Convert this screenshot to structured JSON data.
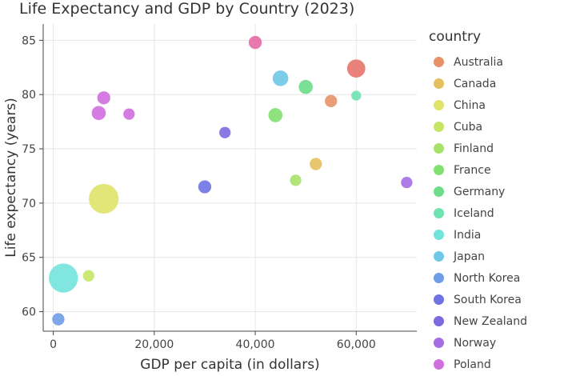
{
  "chart_data": {
    "type": "scatter",
    "title": "Life Expectancy and GDP by Country (2023)",
    "xlabel": "GDP per capita (in dollars)",
    "ylabel": "Life expectancy (years)",
    "xlim": [
      -2000,
      72000
    ],
    "ylim": [
      58.2,
      86.5
    ],
    "xticks": [
      0,
      20000,
      40000,
      60000
    ],
    "xtick_labels": [
      "0",
      "20,000",
      "40,000",
      "60,000"
    ],
    "yticks": [
      60,
      65,
      70,
      75,
      80,
      85
    ],
    "ytick_labels": [
      "60",
      "65",
      "70",
      "75",
      "80",
      "85"
    ],
    "grid": true,
    "legend_title": "country",
    "legend_position": "right",
    "size_encodes": "population",
    "series": [
      {
        "name": "Australia",
        "color": "#e8926a",
        "points": [
          {
            "x": 55000,
            "y": 79.4,
            "size": 0.1
          }
        ]
      },
      {
        "name": "Canada",
        "color": "#e4c060",
        "points": [
          {
            "x": 52000,
            "y": 73.6,
            "size": 0.1
          }
        ]
      },
      {
        "name": "China",
        "color": "#dfe36a",
        "points": [
          {
            "x": 10000,
            "y": 70.4,
            "size": 1.0
          }
        ]
      },
      {
        "name": "Cuba",
        "color": "#c5e567",
        "points": [
          {
            "x": 7000,
            "y": 63.3,
            "size": 0.08
          }
        ]
      },
      {
        "name": "Finland",
        "color": "#a7e36a",
        "points": [
          {
            "x": 48000,
            "y": 72.1,
            "size": 0.08
          }
        ]
      },
      {
        "name": "France",
        "color": "#82e070",
        "points": [
          {
            "x": 44000,
            "y": 78.1,
            "size": 0.15
          }
        ]
      },
      {
        "name": "Germany",
        "color": "#6ddd8b",
        "points": [
          {
            "x": 50000,
            "y": 80.7,
            "size": 0.15
          }
        ]
      },
      {
        "name": "Iceland",
        "color": "#6ee3b0",
        "points": [
          {
            "x": 60000,
            "y": 79.9,
            "size": 0.05
          }
        ]
      },
      {
        "name": "India",
        "color": "#72e3db",
        "points": [
          {
            "x": 2000,
            "y": 63.1,
            "size": 0.95
          }
        ]
      },
      {
        "name": "Japan",
        "color": "#6ec8e6",
        "points": [
          {
            "x": 45000,
            "y": 81.5,
            "size": 0.2
          }
        ]
      },
      {
        "name": "North Korea",
        "color": "#6f9de6",
        "points": [
          {
            "x": 1000,
            "y": 59.3,
            "size": 0.1
          }
        ]
      },
      {
        "name": "South Korea",
        "color": "#6f73e3",
        "points": [
          {
            "x": 30000,
            "y": 71.5,
            "size": 0.12
          }
        ]
      },
      {
        "name": "New Zealand",
        "color": "#7c6be0",
        "points": [
          {
            "x": 34000,
            "y": 76.5,
            "size": 0.08
          }
        ]
      },
      {
        "name": "Norway",
        "color": "#a46ee2",
        "points": [
          {
            "x": 70000,
            "y": 71.9,
            "size": 0.08
          }
        ]
      },
      {
        "name": "Poland",
        "color": "#d06ee0",
        "points": [
          {
            "x": 10000,
            "y": 79.7,
            "size": 0.12
          },
          {
            "x": 9000,
            "y": 78.3,
            "size": 0.15
          },
          {
            "x": 15000,
            "y": 78.2,
            "size": 0.08
          }
        ]
      },
      {
        "name": "",
        "color": "#e46aa3",
        "points": [
          {
            "x": 40000,
            "y": 84.8,
            "size": 0.12
          }
        ]
      },
      {
        "name": "",
        "color": "#e8736c",
        "points": [
          {
            "x": 60000,
            "y": 82.4,
            "size": 0.3
          }
        ]
      }
    ]
  }
}
